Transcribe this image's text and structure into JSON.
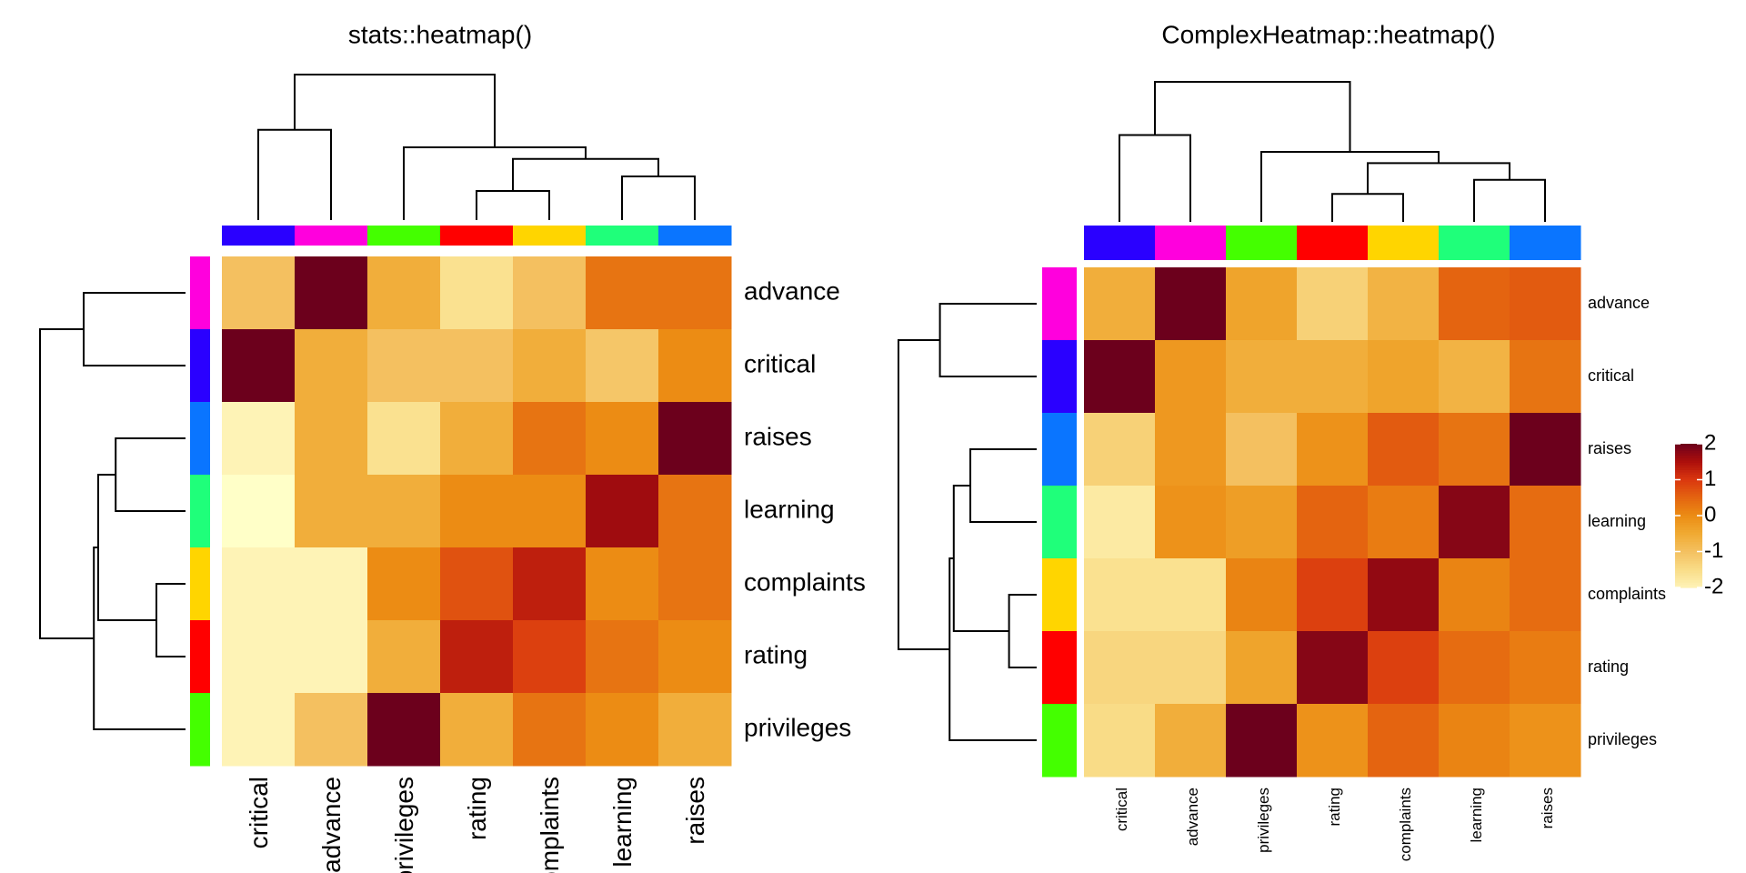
{
  "chart_data": [
    {
      "type": "heatmap",
      "title": "stats::heatmap()",
      "rows": [
        "advance",
        "critical",
        "raises",
        "learning",
        "complaints",
        "rating",
        "privileges"
      ],
      "columns": [
        "critical",
        "advance",
        "privileges",
        "rating",
        "complaints",
        "learning",
        "raises"
      ],
      "values": [
        [
          -1.0,
          2.0,
          -0.6,
          -1.6,
          -1.0,
          0.3,
          0.3
        ],
        [
          2.0,
          -0.6,
          -1.0,
          -1.0,
          -0.6,
          -1.1,
          0.0
        ],
        [
          -2.0,
          -0.6,
          -1.6,
          -0.6,
          0.3,
          0.0,
          2.0
        ],
        [
          -2.3,
          -0.6,
          -0.6,
          0.0,
          0.0,
          1.6,
          0.3
        ],
        [
          -2.0,
          -2.0,
          0.0,
          0.7,
          1.3,
          0.0,
          0.3
        ],
        [
          -2.0,
          -2.0,
          -0.6,
          1.3,
          0.9,
          0.3,
          0.0
        ],
        [
          -2.0,
          -1.0,
          2.0,
          -0.6,
          0.3,
          0.0,
          -0.6
        ]
      ],
      "row_colors": [
        "#ff00dd",
        "#2a00ff",
        "#0a75ff",
        "#1fff7a",
        "#ffd500",
        "#ff0000",
        "#44ff00"
      ],
      "column_colors": [
        "#2a00ff",
        "#ff00dd",
        "#44ff00",
        "#ff0000",
        "#ffd500",
        "#1fff7a",
        "#0a75ff"
      ],
      "dendrograms": true,
      "legend": false
    },
    {
      "type": "heatmap",
      "title": "ComplexHeatmap::heatmap()",
      "rows": [
        "advance",
        "critical",
        "raises",
        "learning",
        "complaints",
        "rating",
        "privileges"
      ],
      "columns": [
        "critical",
        "advance",
        "privileges",
        "rating",
        "complaints",
        "learning",
        "raises"
      ],
      "values": [
        [
          -0.6,
          2.0,
          -0.4,
          -1.3,
          -0.7,
          0.5,
          0.6
        ],
        [
          2.0,
          -0.2,
          -0.6,
          -0.6,
          -0.4,
          -0.7,
          0.3
        ],
        [
          -1.3,
          -0.2,
          -1.0,
          -0.1,
          0.6,
          0.3,
          2.0
        ],
        [
          -1.8,
          -0.1,
          -0.3,
          0.5,
          0.2,
          1.8,
          0.4
        ],
        [
          -1.6,
          -1.6,
          0.1,
          0.9,
          1.7,
          0.1,
          0.4
        ],
        [
          -1.4,
          -1.4,
          -0.4,
          1.8,
          0.9,
          0.4,
          0.2
        ],
        [
          -1.5,
          -0.6,
          2.0,
          -0.1,
          0.5,
          0.1,
          -0.1
        ]
      ],
      "row_colors": [
        "#ff00dd",
        "#2a00ff",
        "#0a75ff",
        "#1fff7a",
        "#ffd500",
        "#ff0000",
        "#44ff00"
      ],
      "column_colors": [
        "#2a00ff",
        "#ff00dd",
        "#44ff00",
        "#ff0000",
        "#ffd500",
        "#1fff7a",
        "#0a75ff"
      ],
      "dendrograms": true,
      "legend": {
        "ticks": [
          2,
          1,
          0,
          -1,
          -2
        ],
        "tick_labels": [
          "2",
          "1",
          "0",
          "-1",
          "-2"
        ],
        "range": [
          -2,
          2
        ],
        "placement": "right"
      }
    }
  ]
}
